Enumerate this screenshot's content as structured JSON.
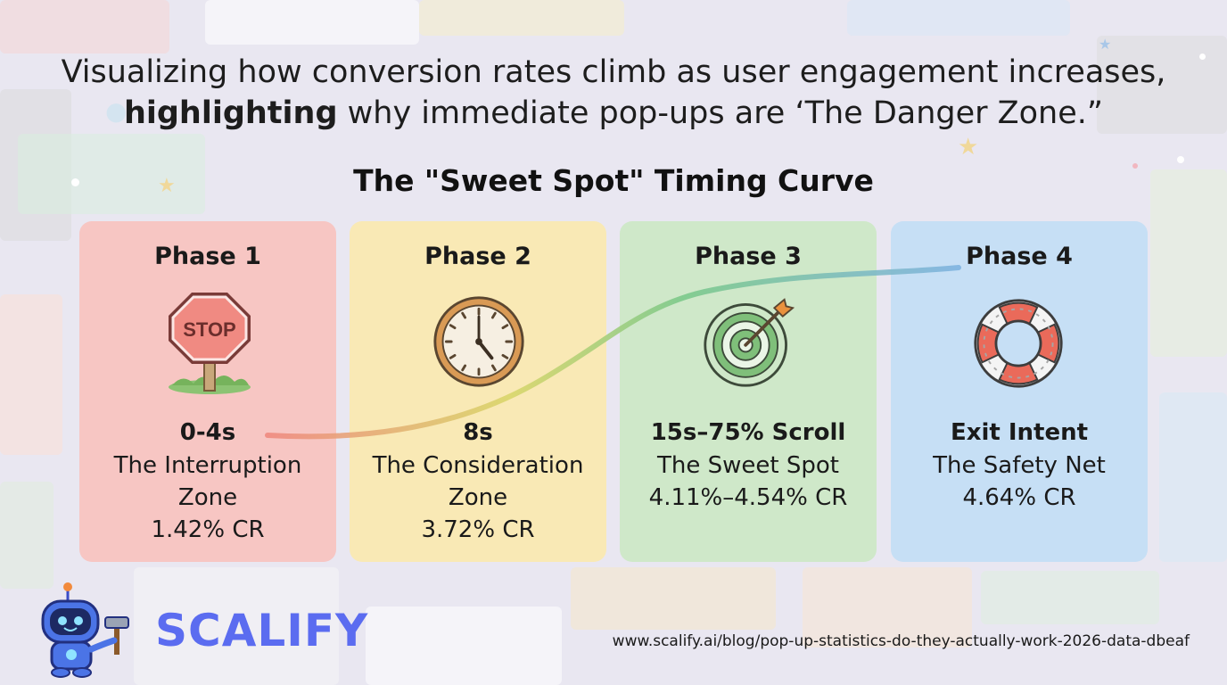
{
  "subtitle": {
    "line1": "Visualizing how conversion rates climb as user engagement increases,",
    "line2_bold": "highlighting",
    "line2_rest": " why immediate pop-ups are ‘The Danger Zone.”"
  },
  "title": "The \"Sweet Spot\" Timing Curve",
  "colors": {
    "phase1": "#f7c6c3",
    "phase2": "#f9e9b5",
    "phase3": "#cfe8c9",
    "phase4": "#c6dff5",
    "curve_start": "#ef8a80",
    "curve_mid": "#d9d66a",
    "curve_green": "#7cc98a",
    "curve_end": "#7fb3e0",
    "logo": "#5b6cf0"
  },
  "phases": [
    {
      "label": "Phase 1",
      "timing": "0-4s",
      "zone_line1": "The Interruption",
      "zone_line2": "Zone",
      "rate": "1.42% CR",
      "icon": "stop-sign-icon"
    },
    {
      "label": "Phase 2",
      "timing": "8s",
      "zone_line1": "The Consideration",
      "zone_line2": "Zone",
      "rate": "3.72% CR",
      "icon": "clock-icon"
    },
    {
      "label": "Phase 3",
      "timing": "15s–75% Scroll",
      "zone_line1": "The Sweet Spot",
      "zone_line2": "",
      "rate": "4.11%–4.54% CR",
      "icon": "target-icon"
    },
    {
      "label": "Phase 4",
      "timing": "Exit Intent",
      "zone_line1": "The Safety Net",
      "zone_line2": "",
      "rate": "4.64% CR",
      "icon": "life-ring-icon"
    }
  ],
  "stop_sign_text": "STOP",
  "brand": "SCALIFY",
  "url": "www.scalify.ai/blog/pop-up-statistics-do-they-actually-work-2026-data-dbeaf"
}
